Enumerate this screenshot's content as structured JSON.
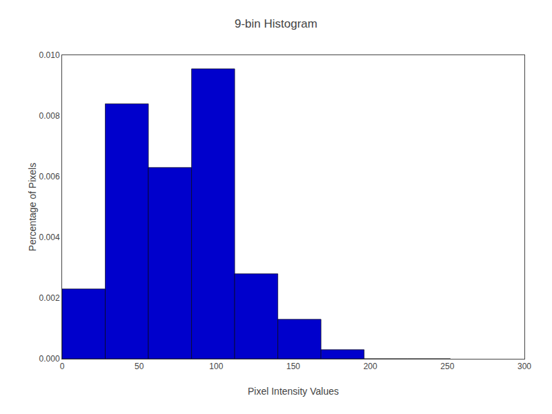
{
  "chart_data": {
    "type": "histogram",
    "title": "9-bin Histogram",
    "xlabel": "Pixel Intensity Values",
    "ylabel": "Percentage of Pixels",
    "bins": [
      0,
      28,
      56,
      84,
      112,
      140,
      168,
      196,
      224,
      252
    ],
    "values": [
      0.0023,
      0.0084,
      0.0063,
      0.00955,
      0.0028,
      0.0013,
      0.0003,
      0.0,
      0.0
    ],
    "color": "#0000CC",
    "xlim": [
      0,
      300
    ],
    "xticks": [
      0,
      50,
      100,
      150,
      200,
      250,
      300
    ],
    "ylim": [
      0,
      0.01
    ],
    "yticks": [
      {
        "value": 0.0,
        "label": "0.000"
      },
      0.002,
      0.004,
      0.006,
      0.008,
      {
        "value": 0.01,
        "label": "0.010"
      }
    ],
    "grid": false
  }
}
